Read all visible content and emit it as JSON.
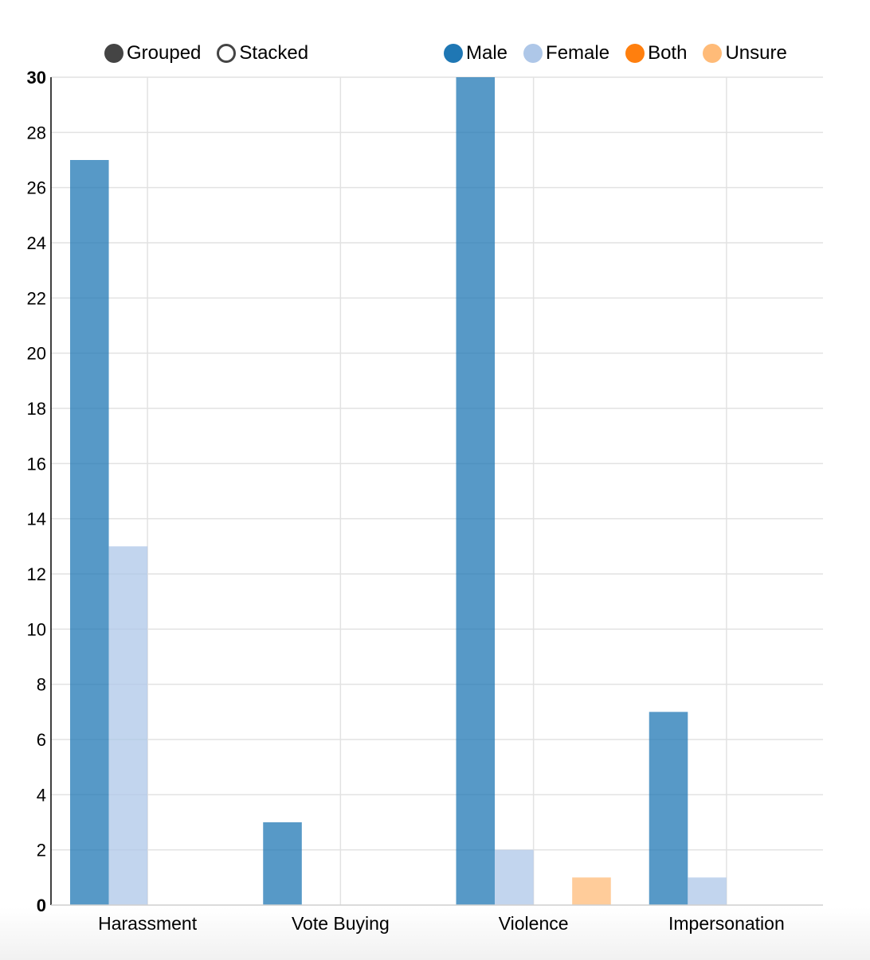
{
  "controls": {
    "grouped_label": "Grouped",
    "stacked_label": "Stacked",
    "selected": "Grouped"
  },
  "legend": [
    {
      "name": "Male",
      "color": "#1f77b4"
    },
    {
      "name": "Female",
      "color": "#aec7e8"
    },
    {
      "name": "Both",
      "color": "#ff7f0e"
    },
    {
      "name": "Unsure",
      "color": "#ffbb78"
    }
  ],
  "chart_data": {
    "type": "bar",
    "mode": "grouped",
    "categories": [
      "Harassment",
      "Vote Buying",
      "Violence",
      "Impersonation"
    ],
    "series": [
      {
        "name": "Male",
        "color": "#1f77b4",
        "values": [
          27,
          3,
          30,
          7
        ]
      },
      {
        "name": "Female",
        "color": "#aec7e8",
        "values": [
          13,
          0,
          2,
          1
        ]
      },
      {
        "name": "Both",
        "color": "#ff7f0e",
        "values": [
          0,
          0,
          0,
          0
        ]
      },
      {
        "name": "Unsure",
        "color": "#ffbb78",
        "values": [
          0,
          0,
          1,
          0
        ]
      }
    ],
    "yticks": [
      0,
      2,
      4,
      6,
      8,
      10,
      12,
      14,
      16,
      18,
      20,
      22,
      24,
      26,
      28,
      30
    ],
    "ylim": [
      0,
      30
    ],
    "grid": true,
    "legend_position": "top-right"
  }
}
